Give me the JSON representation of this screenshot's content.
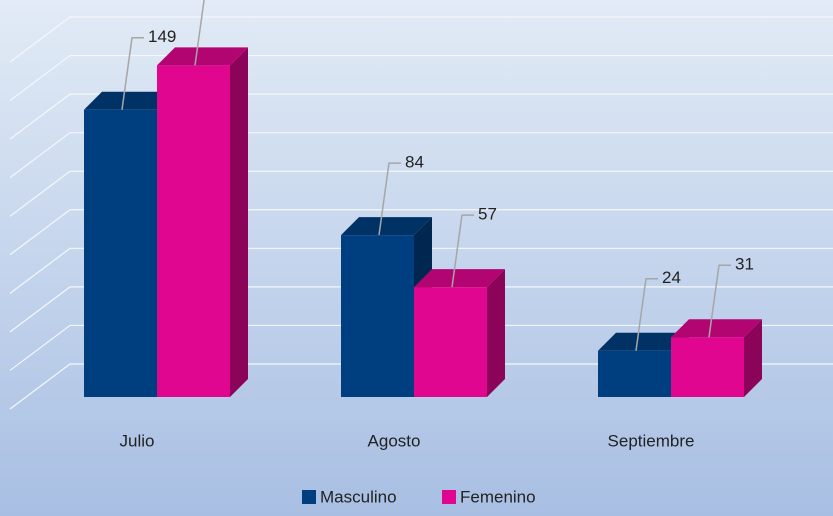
{
  "chart_data": {
    "type": "bar3d",
    "categories": [
      "Julio",
      "Agosto",
      "Septiembre"
    ],
    "series": [
      {
        "name": "Masculino",
        "color": "#003f7f",
        "values": [
          149,
          84,
          24
        ]
      },
      {
        "name": "Femenino",
        "color": "#e0068f",
        "values": [
          172,
          57,
          31
        ]
      }
    ],
    "ylim": [
      0,
      180
    ],
    "yticks": [
      0,
      20,
      40,
      60,
      80,
      100,
      120,
      140,
      160,
      180
    ],
    "grid": true,
    "legend": "bottom"
  }
}
